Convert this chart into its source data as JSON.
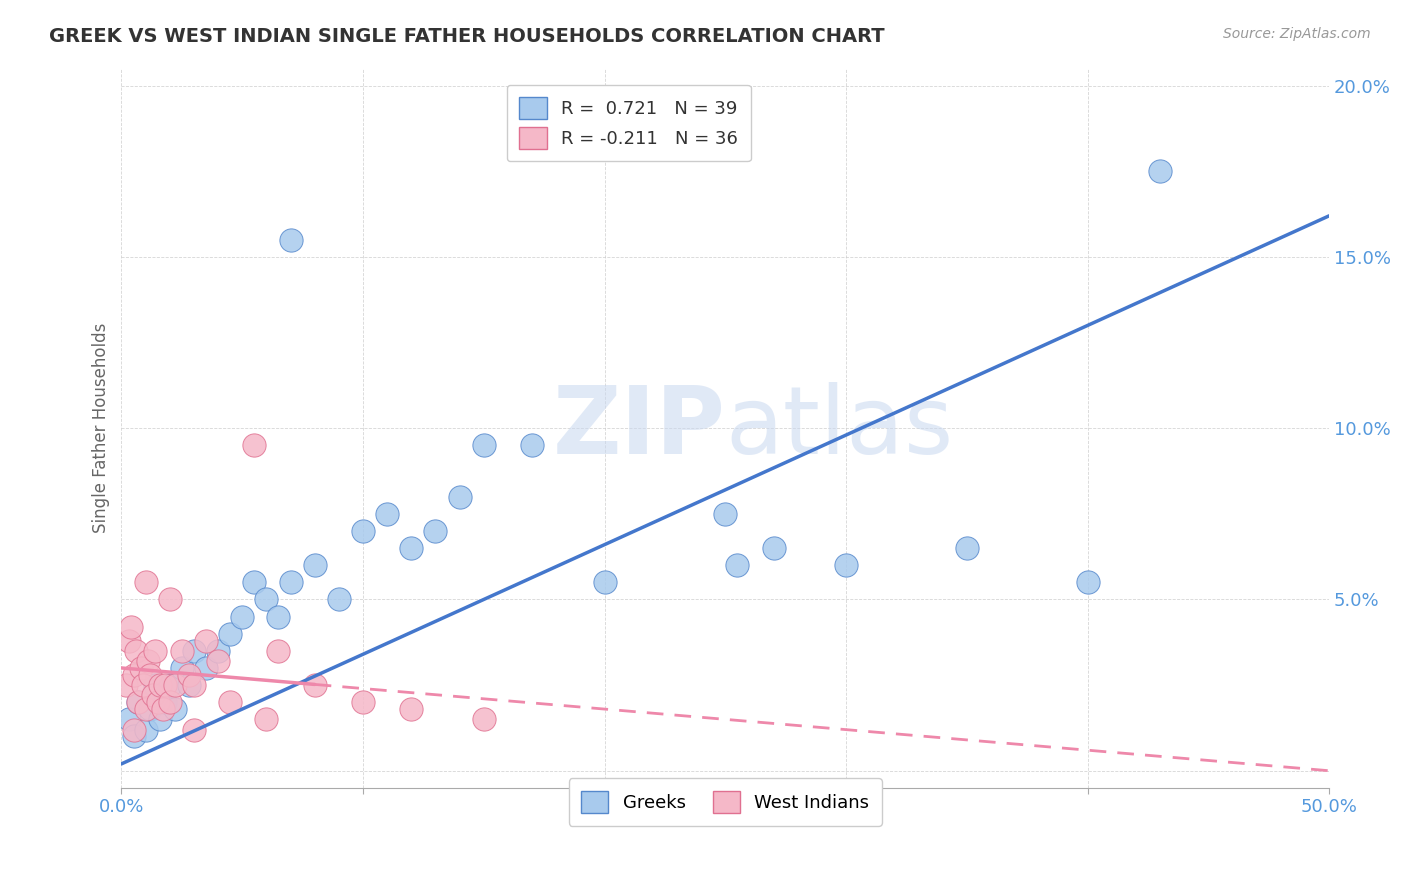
{
  "title": "GREEK VS WEST INDIAN SINGLE FATHER HOUSEHOLDS CORRELATION CHART",
  "source": "Source: ZipAtlas.com",
  "ylabel": "Single Father Households",
  "yticks": [
    0.0,
    5.0,
    10.0,
    15.0,
    20.0
  ],
  "ytick_labels": [
    "",
    "5.0%",
    "10.0%",
    "15.0%",
    "20.0%"
  ],
  "xticks": [
    0,
    10,
    20,
    30,
    40,
    50
  ],
  "xtick_labels": [
    "0.0%",
    "",
    "",
    "",
    "",
    "50.0%"
  ],
  "xlim": [
    0.0,
    50.0
  ],
  "ylim": [
    -0.5,
    20.5
  ],
  "blue_fill": "#A8CAED",
  "pink_fill": "#F5B8C8",
  "blue_edge": "#5588CC",
  "pink_edge": "#E07090",
  "blue_line": "#4477CC",
  "pink_line": "#EE88AA",
  "watermark_color": "#C8D8F0",
  "background": "#FFFFFF",
  "tick_color": "#5599DD",
  "grid_color": "#CCCCCC",
  "title_color": "#333333",
  "source_color": "#999999",
  "ylabel_color": "#666666",
  "legend_edge": "#CCCCCC",
  "greeks_points": [
    [
      0.3,
      1.5
    ],
    [
      0.5,
      1.0
    ],
    [
      0.7,
      2.0
    ],
    [
      1.0,
      1.2
    ],
    [
      1.2,
      1.8
    ],
    [
      1.4,
      2.5
    ],
    [
      1.6,
      1.5
    ],
    [
      1.8,
      2.0
    ],
    [
      2.0,
      2.5
    ],
    [
      2.2,
      1.8
    ],
    [
      2.5,
      3.0
    ],
    [
      2.8,
      2.5
    ],
    [
      3.0,
      3.5
    ],
    [
      3.5,
      3.0
    ],
    [
      4.0,
      3.5
    ],
    [
      4.5,
      4.0
    ],
    [
      5.0,
      4.5
    ],
    [
      5.5,
      5.5
    ],
    [
      6.0,
      5.0
    ],
    [
      6.5,
      4.5
    ],
    [
      7.0,
      5.5
    ],
    [
      8.0,
      6.0
    ],
    [
      9.0,
      5.0
    ],
    [
      10.0,
      7.0
    ],
    [
      11.0,
      7.5
    ],
    [
      12.0,
      6.5
    ],
    [
      13.0,
      7.0
    ],
    [
      14.0,
      8.0
    ],
    [
      15.0,
      9.5
    ],
    [
      17.0,
      9.5
    ],
    [
      20.0,
      5.5
    ],
    [
      25.0,
      7.5
    ],
    [
      25.5,
      6.0
    ],
    [
      27.0,
      6.5
    ],
    [
      30.0,
      6.0
    ],
    [
      35.0,
      6.5
    ],
    [
      40.0,
      5.5
    ],
    [
      7.0,
      15.5
    ],
    [
      43.0,
      17.5
    ]
  ],
  "west_indian_points": [
    [
      0.2,
      2.5
    ],
    [
      0.3,
      3.8
    ],
    [
      0.4,
      4.2
    ],
    [
      0.5,
      2.8
    ],
    [
      0.6,
      3.5
    ],
    [
      0.7,
      2.0
    ],
    [
      0.8,
      3.0
    ],
    [
      0.9,
      2.5
    ],
    [
      1.0,
      1.8
    ],
    [
      1.1,
      3.2
    ],
    [
      1.2,
      2.8
    ],
    [
      1.3,
      2.2
    ],
    [
      1.4,
      3.5
    ],
    [
      1.5,
      2.0
    ],
    [
      1.6,
      2.5
    ],
    [
      1.7,
      1.8
    ],
    [
      1.8,
      2.5
    ],
    [
      2.0,
      2.0
    ],
    [
      2.2,
      2.5
    ],
    [
      2.5,
      3.5
    ],
    [
      2.8,
      2.8
    ],
    [
      3.0,
      2.5
    ],
    [
      3.5,
      3.8
    ],
    [
      4.0,
      3.2
    ],
    [
      5.5,
      9.5
    ],
    [
      6.5,
      3.5
    ],
    [
      8.0,
      2.5
    ],
    [
      10.0,
      2.0
    ],
    [
      12.0,
      1.8
    ],
    [
      15.0,
      1.5
    ],
    [
      0.5,
      1.2
    ],
    [
      1.0,
      5.5
    ],
    [
      2.0,
      5.0
    ],
    [
      4.5,
      2.0
    ],
    [
      6.0,
      1.5
    ],
    [
      3.0,
      1.2
    ]
  ],
  "blue_trendline_slope": 0.32,
  "blue_trendline_intercept": 0.2,
  "pink_trendline_slope": -0.06,
  "pink_trendline_intercept": 3.0
}
